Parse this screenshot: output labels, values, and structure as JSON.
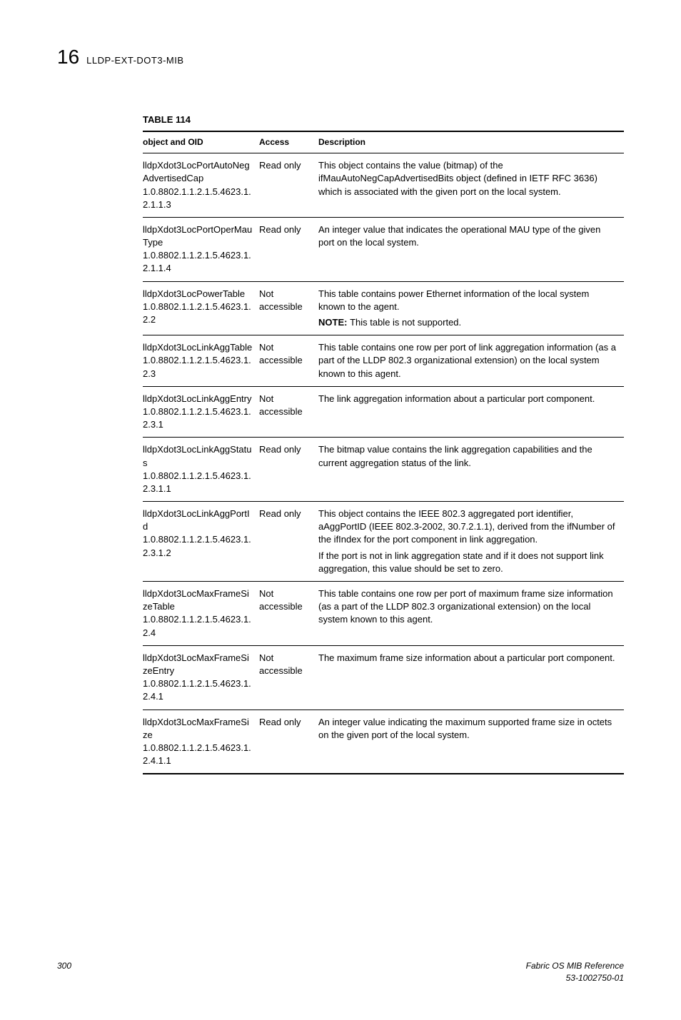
{
  "header": {
    "chapter_number": "16",
    "chapter_title": "LLDP-EXT-DOT3-MIB"
  },
  "table": {
    "title": "TABLE 114",
    "columns": [
      "object and OID",
      "Access",
      "Description"
    ],
    "rows": [
      {
        "obj_name": "lldpXdot3LocPortAutoNegAdvertisedCap",
        "obj_oid": "1.0.8802.1.1.2.1.5.4623.1.2.1.1.3",
        "access": "Read only",
        "desc": [
          "This object contains the value (bitmap) of the ifMauAutoNegCapAdvertisedBits object (defined in IETF RFC 3636) which is associated with the given port on the local system."
        ]
      },
      {
        "obj_name": "lldpXdot3LocPortOperMauType",
        "obj_oid": "1.0.8802.1.1.2.1.5.4623.1.2.1.1.4",
        "access": "Read only",
        "desc": [
          "An integer value that indicates the operational MAU type of the given port on the local system."
        ]
      },
      {
        "obj_name": "lldpXdot3LocPowerTable",
        "obj_oid": "1.0.8802.1.1.2.1.5.4623.1.2.2",
        "access": "Not accessible",
        "desc": [
          "This table contains power Ethernet information of the local system known to the agent."
        ],
        "note": "This table is not supported."
      },
      {
        "obj_name": "lldpXdot3LocLinkAggTable",
        "obj_oid": "1.0.8802.1.1.2.1.5.4623.1.2.3",
        "access": "Not accessible",
        "desc": [
          "This table contains one row per port of link aggregation information (as a part of the LLDP 802.3 organizational extension) on the local system known to this agent."
        ]
      },
      {
        "obj_name": "lldpXdot3LocLinkAggEntry",
        "obj_oid": "1.0.8802.1.1.2.1.5.4623.1.2.3.1",
        "access": "Not accessible",
        "desc": [
          "The link aggregation information about a particular port component."
        ]
      },
      {
        "obj_name": "lldpXdot3LocLinkAggStatus",
        "obj_oid": "1.0.8802.1.1.2.1.5.4623.1.2.3.1.1",
        "access": "Read only",
        "desc": [
          "The bitmap value contains the link aggregation capabilities and the current aggregation status of the link."
        ]
      },
      {
        "obj_name": "lldpXdot3LocLinkAggPortId",
        "obj_oid": "1.0.8802.1.1.2.1.5.4623.1.2.3.1.2",
        "access": "Read only",
        "desc": [
          "This object contains the IEEE 802.3 aggregated port identifier, aAggPortID (IEEE 802.3-2002, 30.7.2.1.1), derived from the ifNumber of the ifIndex for the port component in link aggregation.",
          "If the port is not in link aggregation state and if it does not support link aggregation, this value should be set to zero."
        ]
      },
      {
        "obj_name": "lldpXdot3LocMaxFrameSizeTable",
        "obj_oid": "1.0.8802.1.1.2.1.5.4623.1.2.4",
        "access": "Not accessible",
        "desc": [
          "This table contains one row per port of maximum frame size information (as a part of the LLDP 802.3 organizational extension) on the local system known to this agent."
        ]
      },
      {
        "obj_name": "lldpXdot3LocMaxFrameSizeEntry",
        "obj_oid": "1.0.8802.1.1.2.1.5.4623.1.2.4.1",
        "access": "Not accessible",
        "desc": [
          "The maximum frame size information about a particular port component."
        ]
      },
      {
        "obj_name": "lldpXdot3LocMaxFrameSize",
        "obj_oid": "1.0.8802.1.1.2.1.5.4623.1.2.4.1.1",
        "access": "Read only",
        "desc": [
          "An integer value indicating the maximum supported frame size in octets on the given port of the local system."
        ]
      }
    ]
  },
  "footer": {
    "page_number": "300",
    "doc_title": "Fabric OS MIB Reference",
    "doc_id": "53-1002750-01"
  },
  "note_label": "NOTE:"
}
